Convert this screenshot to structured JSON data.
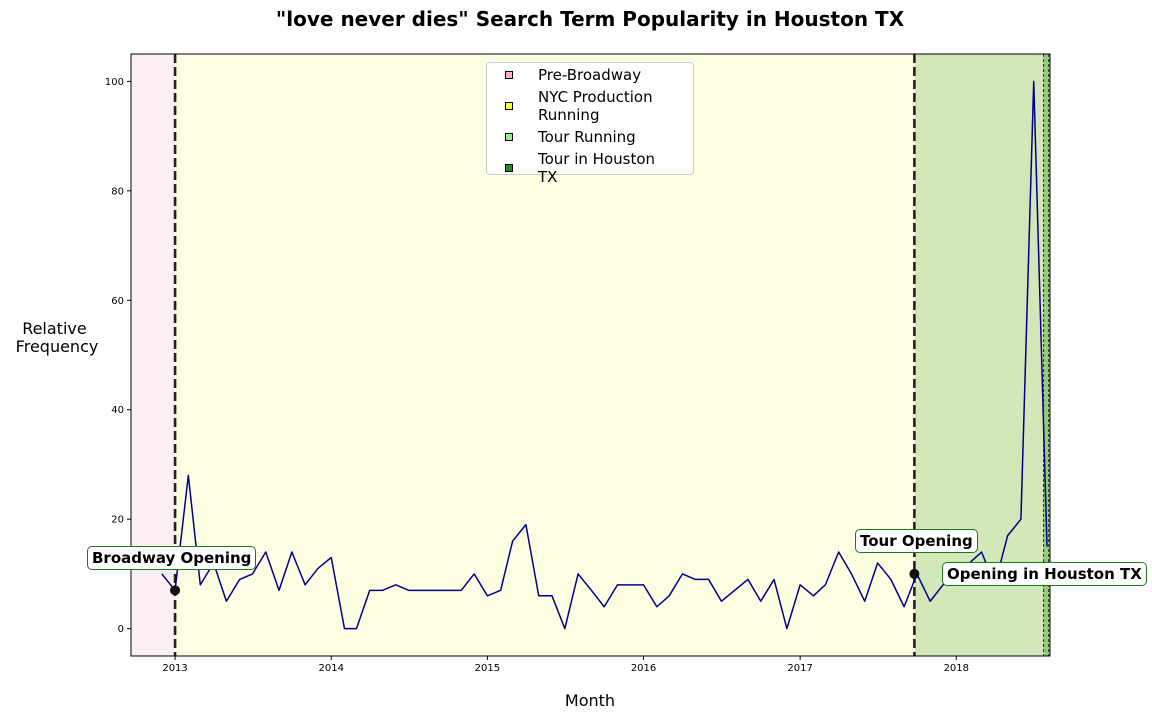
{
  "chart_data": {
    "type": "line",
    "title": "\"love never dies\" Search Term Popularity in Houston TX",
    "xlabel": "Month",
    "ylabel": "Relative\nFrequency",
    "xlim": [
      "2012-09-20",
      "2018-08-08"
    ],
    "ylim": [
      -5,
      105
    ],
    "x_ticks": [
      "2013-01-01",
      "2014-01-01",
      "2015-01-01",
      "2016-01-01",
      "2017-01-01",
      "2018-01-01"
    ],
    "x_tick_labels": [
      "2013",
      "2014",
      "2015",
      "2016",
      "2017",
      "2018"
    ],
    "y_ticks": [
      0,
      20,
      40,
      60,
      80,
      100
    ],
    "y_tick_labels": [
      "0",
      "20",
      "40",
      "60",
      "80",
      "100"
    ],
    "grid": false,
    "legend_placement": "top-center",
    "legend": [
      {
        "label": "Pre-Broadway",
        "color": "#ffb6c1"
      },
      {
        "label": "NYC Production Running",
        "color": "#ffff33"
      },
      {
        "label": "Tour Running",
        "color": "#90ee90"
      },
      {
        "label": "Tour in Houston TX",
        "color": "#228b22"
      }
    ],
    "phases": [
      {
        "name": "Pre-Broadway",
        "start": "2012-09-20",
        "end": "2013-01-01",
        "color": "#fdf0f3"
      },
      {
        "name": "NYC Production Running",
        "start": "2013-01-01",
        "end": "2017-09-25",
        "color": "#fefee3"
      },
      {
        "name": "Tour Running",
        "start": "2017-09-25",
        "end": "2018-08-08",
        "color": "#d2e8b8"
      },
      {
        "name": "Tour in Houston TX",
        "start": "2018-07-24",
        "end": "2018-08-05",
        "color": "#8fcf7a"
      }
    ],
    "series": [
      {
        "color": "#00008b",
        "x": [
          "2012-12-01",
          "2013-01-01",
          "2013-02-01",
          "2013-03-01",
          "2013-04-01",
          "2013-05-01",
          "2013-06-01",
          "2013-07-01",
          "2013-08-01",
          "2013-09-01",
          "2013-10-01",
          "2013-11-01",
          "2013-12-01",
          "2014-01-01",
          "2014-02-01",
          "2014-03-01",
          "2014-04-01",
          "2014-05-01",
          "2014-06-01",
          "2014-07-01",
          "2014-08-01",
          "2014-09-01",
          "2014-10-01",
          "2014-11-01",
          "2014-12-01",
          "2015-01-01",
          "2015-02-01",
          "2015-03-01",
          "2015-04-01",
          "2015-05-01",
          "2015-06-01",
          "2015-07-01",
          "2015-08-01",
          "2015-09-01",
          "2015-10-01",
          "2015-11-01",
          "2015-12-01",
          "2016-01-01",
          "2016-02-01",
          "2016-03-01",
          "2016-04-01",
          "2016-05-01",
          "2016-06-01",
          "2016-07-01",
          "2016-08-01",
          "2016-09-01",
          "2016-10-01",
          "2016-11-01",
          "2016-12-01",
          "2017-01-01",
          "2017-02-01",
          "2017-03-01",
          "2017-04-01",
          "2017-05-01",
          "2017-06-01",
          "2017-07-01",
          "2017-08-01",
          "2017-09-01",
          "2017-10-01",
          "2017-11-01",
          "2017-12-01",
          "2018-01-01",
          "2018-02-01",
          "2018-03-01",
          "2018-04-01",
          "2018-05-01",
          "2018-06-01",
          "2018-07-01",
          "2018-08-01"
        ],
        "values": [
          10,
          7,
          28,
          8,
          12,
          5,
          9,
          10,
          14,
          7,
          14,
          8,
          11,
          13,
          0,
          0,
          7,
          7,
          8,
          7,
          7,
          7,
          7,
          7,
          10,
          6,
          7,
          16,
          19,
          6,
          6,
          0,
          10,
          7,
          4,
          8,
          8,
          8,
          4,
          6,
          10,
          9,
          9,
          5,
          7,
          9,
          5,
          9,
          0,
          8,
          6,
          8,
          14,
          10,
          5,
          12,
          9,
          4,
          10,
          5,
          8,
          9,
          12,
          14,
          8,
          17,
          20,
          100,
          15
        ]
      }
    ],
    "event_lines": [
      {
        "date": "2013-01-01"
      },
      {
        "date": "2017-09-25"
      },
      {
        "date": "2018-07-24",
        "fine": true
      },
      {
        "date": "2018-08-05",
        "fine": true
      }
    ],
    "annotations": [
      {
        "text": "Broadway Opening",
        "x": "2013-01-01",
        "y": 7
      },
      {
        "text": "Tour Opening",
        "x": "2017-09-25",
        "y": 10
      },
      {
        "text": "Opening in Houston TX",
        "x": "2018-07-24",
        "y": 10
      }
    ]
  }
}
